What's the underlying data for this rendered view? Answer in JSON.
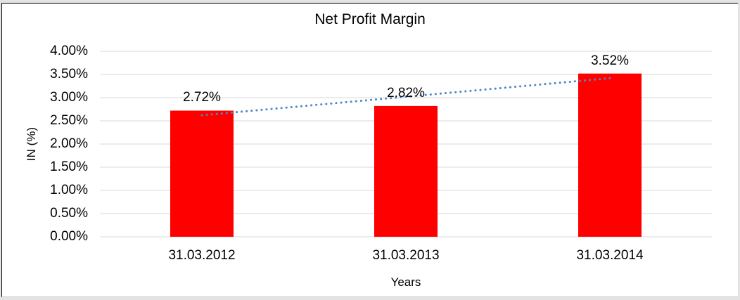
{
  "chart_data": {
    "type": "bar",
    "title": "Net Profit Margin",
    "categories": [
      "31.03.2012",
      "31.03.2013",
      "31.03.2014"
    ],
    "series": [
      {
        "name": "Net Profit Margin",
        "color": "#ff0000",
        "values": [
          2.72,
          2.82,
          3.52
        ],
        "data_labels": [
          "2.72%",
          "2.82%",
          "3.52%"
        ]
      }
    ],
    "trendline": {
      "type": "linear",
      "style": "dotted",
      "color": "#4f86c6",
      "start_value": 2.62,
      "end_value": 3.42
    },
    "xlabel": "Years",
    "ylabel": "IN (%)",
    "ylim": [
      0,
      4
    ],
    "ytick_step": 0.5,
    "ytick_labels": [
      "4.00%",
      "3.50%",
      "3.00%",
      "2.50%",
      "2.00%",
      "1.50%",
      "1.00%",
      "0.50%",
      "0.00%"
    ],
    "grid": true,
    "gridline_color": "#d9d9d9",
    "legend": "none",
    "plot_background": "#ffffff"
  }
}
